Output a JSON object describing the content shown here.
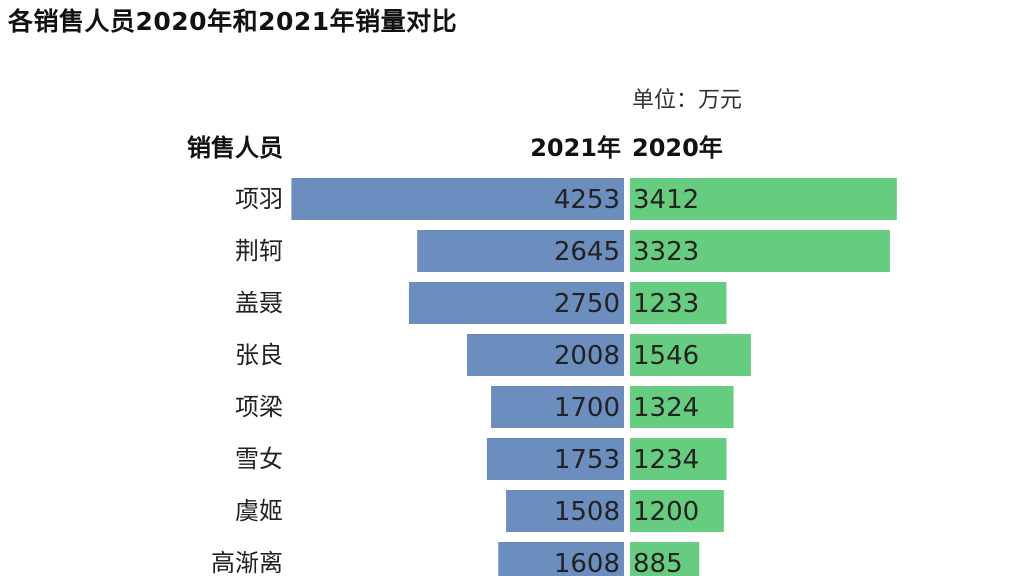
{
  "chart_data": {
    "type": "bar",
    "subtype": "butterfly",
    "title": "各销售人员2020年和2021年销量对比",
    "unit_label": "单位：万元",
    "category_header": "销售人员",
    "categories": [
      "项羽",
      "荆轲",
      "盖聂",
      "张良",
      "项梁",
      "雪女",
      "虞姬",
      "高渐离"
    ],
    "series": [
      {
        "name": "2021年",
        "values": [
          4253,
          2645,
          2750,
          2008,
          1700,
          1753,
          1508,
          1608
        ],
        "color": "#6c8ebf",
        "side": "left"
      },
      {
        "name": "2020年",
        "values": [
          3412,
          3323,
          1233,
          1546,
          1324,
          1234,
          1200,
          885
        ],
        "color": "#66cc7f",
        "side": "right"
      }
    ],
    "legend": "none",
    "grid": false
  }
}
